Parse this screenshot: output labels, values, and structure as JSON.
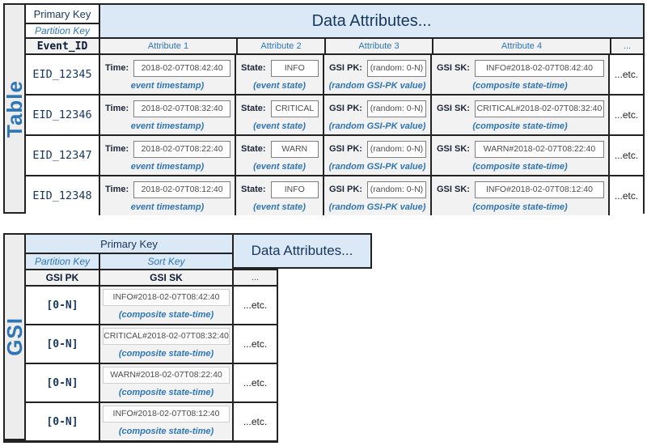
{
  "colors": {
    "accent_blue": "#2e75b6",
    "navy_text": "#17365d",
    "header_blue_bg": "#dbe9f7",
    "cell_grey_bg": "#f2f2f2"
  },
  "table": {
    "side_label": "Table",
    "primary_key": "Primary Key",
    "partition_key": "Partition Key",
    "event_id_header": "Event_ID",
    "data_attributes": "Data Attributes...",
    "attr_headers": [
      "Attribute 1",
      "Attribute 2",
      "Attribute 3",
      "Attribute 4",
      "..."
    ],
    "labels": {
      "time": "Time:",
      "state": "State:",
      "gsi_pk": "GSI PK:",
      "gsi_sk": "GSI SK:"
    },
    "captions": {
      "time": "event timestamp)",
      "state": "(event state)",
      "gsi_pk": "(random GSI-PK value)",
      "gsi_sk": "(composite state-time)"
    },
    "etc": "...etc.",
    "rows": [
      {
        "event_id": "EID_12345",
        "time": "2018-02-07T08:42:40",
        "state": "INFO",
        "gsi_pk": "(random: 0-N)",
        "gsi_sk": "INFO#2018-02-07T08:42:40"
      },
      {
        "event_id": "EID_12346",
        "time": "2018-02-07T08:32:40",
        "state": "CRITICAL",
        "gsi_pk": "(random: 0-N)",
        "gsi_sk": "CRITICAL#2018-02-07T08:32:40"
      },
      {
        "event_id": "EID_12347",
        "time": "2018-02-07T08:22:40",
        "state": "WARN",
        "gsi_pk": "(random: 0-N)",
        "gsi_sk": "WARN#2018-02-07T08:22:40"
      },
      {
        "event_id": "EID_12348",
        "time": "2018-02-07T08:12:40",
        "state": "INFO",
        "gsi_pk": "(random: 0-N)",
        "gsi_sk": "INFO#2018-02-07T08:12:40"
      }
    ]
  },
  "gsi": {
    "side_label": "GSI",
    "primary_key": "Primary Key",
    "partition_key": "Partition Key",
    "sort_key": "Sort Key",
    "data_attributes": "Data Attributes...",
    "pk_header": "GSI PK",
    "sk_header": "GSI SK",
    "dots_header": "...",
    "caption": "(composite state-time)",
    "etc": "...etc.",
    "rows": [
      {
        "pk": "[0-N]",
        "sk": "INFO#2018-02-07T08:42:40"
      },
      {
        "pk": "[0-N]",
        "sk": "CRITICAL#2018-02-07T08:32:40"
      },
      {
        "pk": "[0-N]",
        "sk": "WARN#2018-02-07T08:22:40"
      },
      {
        "pk": "[0-N]",
        "sk": "INFO#2018-02-07T08:12:40"
      }
    ]
  }
}
